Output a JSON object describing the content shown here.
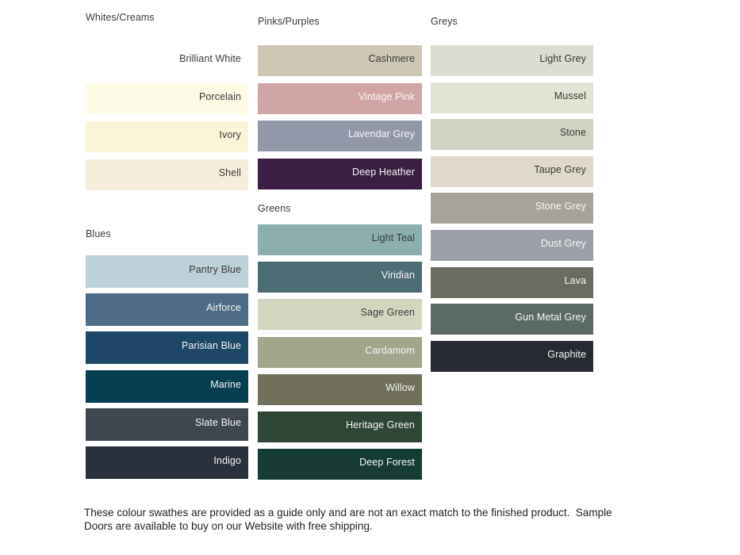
{
  "page": {
    "background": "#FFFFFF",
    "text_dark": "#3A3A3A",
    "text_light": "#F5F5F5"
  },
  "groups": [
    {
      "id": "whites-creams",
      "title": "Whites/Creams",
      "swatches": [
        {
          "name": "Brilliant White",
          "color": "#FFFFFF",
          "label": "dark"
        },
        {
          "name": "Porcelain",
          "color": "#FDFBE5",
          "label": "dark"
        },
        {
          "name": "Ivory",
          "color": "#FAF5D8",
          "label": "dark"
        },
        {
          "name": "Shell",
          "color": "#F6EEDC",
          "label": "dark"
        }
      ]
    },
    {
      "id": "blues",
      "title": "Blues",
      "swatches": [
        {
          "name": "Pantry Blue",
          "color": "#BDD1D9",
          "label": "dark"
        },
        {
          "name": "Airforce",
          "color": "#4E6C85",
          "label": "light"
        },
        {
          "name": "Parisian Blue",
          "color": "#1E4765",
          "label": "light"
        },
        {
          "name": "Marine",
          "color": "#063F50",
          "label": "light"
        },
        {
          "name": "Slate Blue",
          "color": "#3E4650",
          "label": "light"
        },
        {
          "name": "Indigo",
          "color": "#2A313C",
          "label": "light"
        }
      ]
    },
    {
      "id": "pinks-purples",
      "title": "Pinks/Purples",
      "swatches": [
        {
          "name": "Cashmere",
          "color": "#CEC7B6",
          "label": "dark"
        },
        {
          "name": "Vintage Pink",
          "color": "#CFA6A5",
          "label": "light"
        },
        {
          "name": "Lavendar Grey",
          "color": "#9398A9",
          "label": "light"
        },
        {
          "name": "Deep Heather",
          "color": "#3B1F42",
          "label": "light"
        }
      ]
    },
    {
      "id": "greens",
      "title": "Greens",
      "swatches": [
        {
          "name": "Light Teal",
          "color": "#8DAEAE",
          "label": "dark"
        },
        {
          "name": "Viridian",
          "color": "#4E6C74",
          "label": "light"
        },
        {
          "name": "Sage Green",
          "color": "#D2D6C1",
          "label": "dark"
        },
        {
          "name": "Cardamom",
          "color": "#A1A68D",
          "label": "light"
        },
        {
          "name": "Willow",
          "color": "#70705C",
          "label": "light"
        },
        {
          "name": "Heritage Green",
          "color": "#2F4536",
          "label": "light"
        },
        {
          "name": "Deep Forest",
          "color": "#163B33",
          "label": "light"
        }
      ]
    },
    {
      "id": "greys",
      "title": "Greys",
      "swatches": [
        {
          "name": "Light Grey",
          "color": "#DCDCD0",
          "label": "dark"
        },
        {
          "name": "Mussel",
          "color": "#E2E3D4",
          "label": "dark"
        },
        {
          "name": "Stone",
          "color": "#D1D2C2",
          "label": "dark"
        },
        {
          "name": "Taupe Grey",
          "color": "#DFD9CB",
          "label": "dark"
        },
        {
          "name": "Stone Grey",
          "color": "#A8A399",
          "label": "light"
        },
        {
          "name": "Dust Grey",
          "color": "#9C9FA7",
          "label": "light"
        },
        {
          "name": "Lava",
          "color": "#6B6B60",
          "label": "light"
        },
        {
          "name": "Gun Metal Grey",
          "color": "#5C6A67",
          "label": "light"
        },
        {
          "name": "Graphite",
          "color": "#272B31",
          "label": "light"
        }
      ]
    }
  ],
  "footnote": {
    "line1": "These colour swathes are provided as a guide only and are not an exact match to the finished product.  Sample",
    "line2": "Doors are available to buy on our Website with free shipping."
  }
}
